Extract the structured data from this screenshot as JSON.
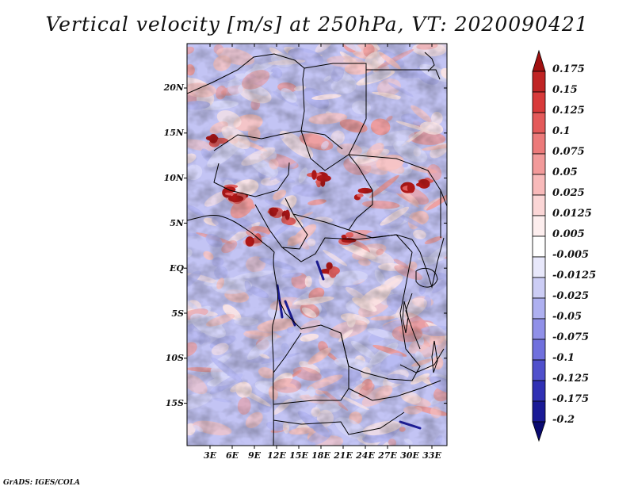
{
  "title": "Vertical velocity [m/s] at 250hPa, VT: 2020090421",
  "credit": "GrADS: IGES/COLA",
  "lat_labels": [
    "20N",
    "15N",
    "10N",
    "5N",
    "EQ",
    "5S",
    "10S",
    "15S"
  ],
  "lon_labels": [
    "3E",
    "6E",
    "9E",
    "12E",
    "15E",
    "18E",
    "21E",
    "24E",
    "27E",
    "30E",
    "33E"
  ],
  "colorbar": {
    "labels": [
      "0.175",
      "0.15",
      "0.125",
      "0.1",
      "0.075",
      "0.05",
      "0.025",
      "0.0125",
      "0.005",
      "-0.005",
      "-0.0125",
      "-0.025",
      "-0.05",
      "-0.075",
      "-0.1",
      "-0.125",
      "-0.175",
      "-0.2"
    ],
    "colors": [
      "#a01010",
      "#c02424",
      "#d83a3a",
      "#e45a5a",
      "#ec7a7a",
      "#f29a9a",
      "#f8baba",
      "#fbd6d6",
      "#fdeeee",
      "#ffffff",
      "#e8e8fb",
      "#cccdf5",
      "#aeb0f0",
      "#9090e8",
      "#7070dd",
      "#5050cc",
      "#3030b4",
      "#1a1a96",
      "#0a0a70"
    ]
  },
  "map": {
    "lon_range": [
      0,
      35
    ],
    "lat_range": [
      -20,
      25
    ],
    "field": "vertical velocity at 250hPa",
    "background_colors": [
      "#d8d8f8",
      "#b4b6f1",
      "#f7c4c4",
      "#ee9a9a",
      "#fbe4e4"
    ],
    "coastline_color": "#000000"
  }
}
